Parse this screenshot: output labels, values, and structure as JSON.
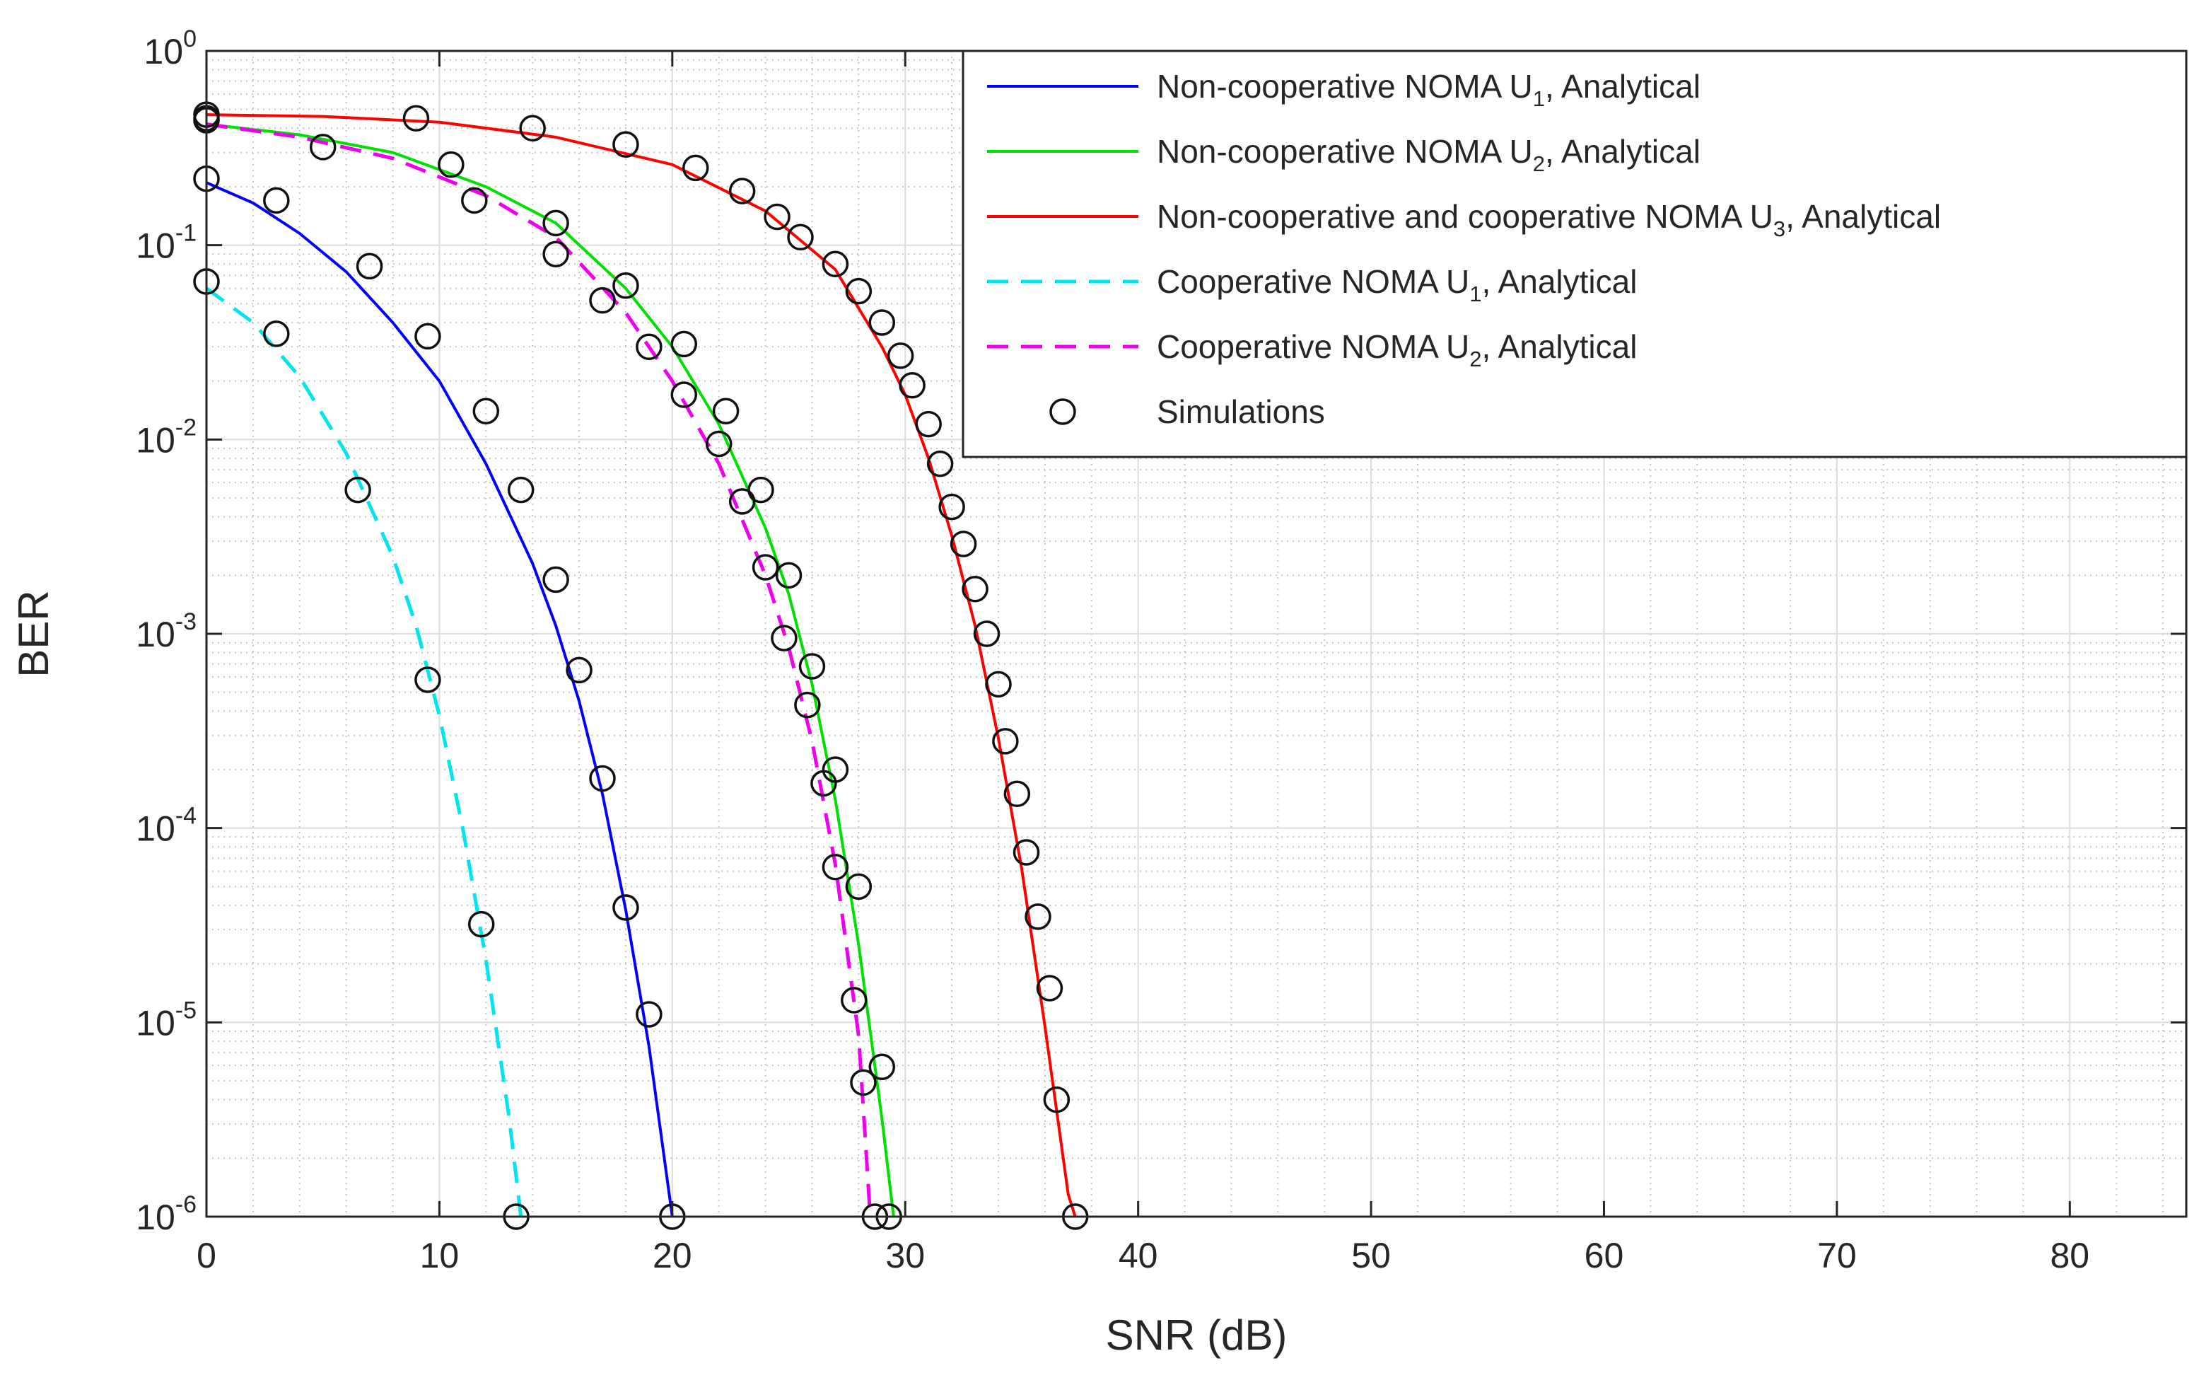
{
  "chart_data": {
    "type": "line",
    "xlabel": "SNR (dB)",
    "ylabel": "BER",
    "xlim": [
      0,
      85
    ],
    "ylim": [
      1e-06,
      1
    ],
    "yscale": "log",
    "grid": true,
    "legend_position": "top-right",
    "x_ticks": [
      {
        "value": 0,
        "label": "0"
      },
      {
        "value": 10,
        "label": "10"
      },
      {
        "value": 20,
        "label": "20"
      },
      {
        "value": 30,
        "label": "30"
      },
      {
        "value": 40,
        "label": "40"
      },
      {
        "value": 50,
        "label": "50"
      },
      {
        "value": 60,
        "label": "60"
      },
      {
        "value": 70,
        "label": "70"
      },
      {
        "value": 80,
        "label": "80"
      }
    ],
    "y_ticks": [
      {
        "value": 1,
        "base": "10",
        "exp": "0"
      },
      {
        "value": 0.1,
        "base": "10",
        "exp": "-1"
      },
      {
        "value": 0.01,
        "base": "10",
        "exp": "-2"
      },
      {
        "value": 0.001,
        "base": "10",
        "exp": "-3"
      },
      {
        "value": 0.0001,
        "base": "10",
        "exp": "-4"
      },
      {
        "value": 1e-05,
        "base": "10",
        "exp": "-5"
      },
      {
        "value": 1e-06,
        "base": "10",
        "exp": "-6"
      }
    ],
    "series": [
      {
        "name": "Non-cooperative NOMA U1, Analytical",
        "legend": {
          "pre": "Non-cooperative NOMA U",
          "sub": "1",
          "post": ", Analytical"
        },
        "color": "#0000ff",
        "style": "solid",
        "x": [
          0,
          2,
          4,
          6,
          8,
          10,
          12,
          14,
          15,
          16,
          17,
          18,
          19,
          20
        ],
        "y": [
          0.21,
          0.165,
          0.115,
          0.073,
          0.04,
          0.02,
          0.0075,
          0.0023,
          0.0011,
          0.00045,
          0.00015,
          3.8e-05,
          7.5e-06,
          1e-06
        ]
      },
      {
        "name": "Non-cooperative NOMA U2, Analytical",
        "legend": {
          "pre": "Non-cooperative NOMA U",
          "sub": "2",
          "post": ", Analytical"
        },
        "color": "#00e000",
        "style": "solid",
        "x": [
          0,
          4,
          8,
          12,
          15,
          18,
          20,
          22,
          24,
          25,
          26,
          27,
          28,
          29,
          29.5
        ],
        "y": [
          0.42,
          0.37,
          0.3,
          0.2,
          0.13,
          0.06,
          0.03,
          0.012,
          0.0035,
          0.0016,
          0.00055,
          0.00014,
          2.5e-05,
          3.2e-06,
          1e-06
        ]
      },
      {
        "name": "Non-cooperative and cooperative NOMA U3, Analytical",
        "legend": {
          "pre": "Non-cooperative and cooperative NOMA U",
          "sub": "3",
          "post": ", Analytical"
        },
        "color": "#ff0000",
        "style": "solid",
        "x": [
          0,
          5,
          10,
          15,
          20,
          24,
          27,
          29,
          30,
          31,
          32,
          33,
          34,
          35,
          36,
          37,
          37.3
        ],
        "y": [
          0.47,
          0.46,
          0.43,
          0.36,
          0.26,
          0.15,
          0.075,
          0.03,
          0.017,
          0.008,
          0.0032,
          0.0011,
          0.00029,
          6.2e-05,
          9.5e-06,
          1.3e-06,
          1e-06
        ]
      },
      {
        "name": "Cooperative NOMA U1, Analytical",
        "legend": {
          "pre": "Cooperative NOMA U",
          "sub": "1",
          "post": ", Analytical"
        },
        "color": "#00e5ee",
        "style": "dashed",
        "x": [
          0,
          2,
          4,
          6,
          8,
          9,
          10,
          11,
          12,
          13,
          13.5
        ],
        "y": [
          0.06,
          0.04,
          0.021,
          0.0085,
          0.0025,
          0.0011,
          0.00038,
          0.0001,
          2.1e-05,
          3.2e-06,
          1e-06
        ]
      },
      {
        "name": "Cooperative NOMA U2, Analytical",
        "legend": {
          "pre": "Cooperative NOMA U",
          "sub": "2",
          "post": ", Analytical"
        },
        "color": "#ee00ee",
        "style": "dashed",
        "x": [
          0,
          4,
          8,
          12,
          15,
          18,
          20,
          22,
          24,
          25,
          26,
          27,
          28,
          28.5
        ],
        "y": [
          0.42,
          0.36,
          0.28,
          0.18,
          0.11,
          0.045,
          0.02,
          0.0075,
          0.002,
          0.00085,
          0.00028,
          6.5e-05,
          8.5e-06,
          1e-06
        ]
      }
    ],
    "simulations": {
      "name": "Simulations",
      "marker": "circle",
      "groups": [
        {
          "curve": "Cooperative NOMA U1",
          "x": [
            0,
            3,
            6.5,
            9.5,
            11.8,
            13.3
          ],
          "y": [
            0.065,
            0.035,
            0.0055,
            0.00058,
            3.2e-05,
            1e-06
          ]
        },
        {
          "curve": "Non-cooperative NOMA U1",
          "x": [
            0,
            3,
            7,
            9.5,
            12,
            13.5,
            15,
            16,
            17,
            18,
            19,
            20
          ],
          "y": [
            0.22,
            0.17,
            0.078,
            0.034,
            0.014,
            0.0055,
            0.0019,
            0.00065,
            0.00018,
            3.9e-05,
            1.1e-05,
            1e-06
          ]
        },
        {
          "curve": "Cooperative NOMA U2",
          "x": [
            0,
            5,
            11.5,
            15,
            17,
            19,
            20.5,
            22,
            23,
            24,
            24.8,
            25.8,
            26.5,
            27,
            27.8,
            28.2,
            28.7
          ],
          "y": [
            0.45,
            0.32,
            0.17,
            0.09,
            0.052,
            0.03,
            0.017,
            0.0095,
            0.0048,
            0.0022,
            0.00095,
            0.00043,
            0.00017,
            6.3e-05,
            1.3e-05,
            4.9e-06,
            1e-06
          ]
        },
        {
          "curve": "Non-cooperative NOMA U2",
          "x": [
            0,
            10.5,
            15,
            18,
            20.5,
            22.3,
            23.8,
            25,
            26,
            27,
            28,
            29,
            29.3
          ],
          "y": [
            0.44,
            0.26,
            0.13,
            0.062,
            0.031,
            0.014,
            0.0055,
            0.002,
            0.00068,
            0.0002,
            5e-05,
            5.9e-06,
            1e-06
          ]
        },
        {
          "curve": "Non-cooperative and cooperative NOMA U3",
          "x": [
            0,
            9,
            14,
            18,
            21,
            23,
            24.5,
            25.5,
            27,
            28,
            29,
            29.8,
            30.3,
            31,
            31.5,
            32,
            32.5,
            33,
            33.5,
            34,
            34.3,
            34.8,
            35.2,
            35.7,
            36.2,
            36.5,
            37.3
          ],
          "y": [
            0.47,
            0.45,
            0.4,
            0.33,
            0.25,
            0.19,
            0.14,
            0.11,
            0.08,
            0.058,
            0.04,
            0.027,
            0.019,
            0.012,
            0.0075,
            0.0045,
            0.0029,
            0.0017,
            0.001,
            0.00055,
            0.00028,
            0.00015,
            7.5e-05,
            3.5e-05,
            1.5e-05,
            4e-06,
            1e-06
          ]
        }
      ]
    }
  }
}
